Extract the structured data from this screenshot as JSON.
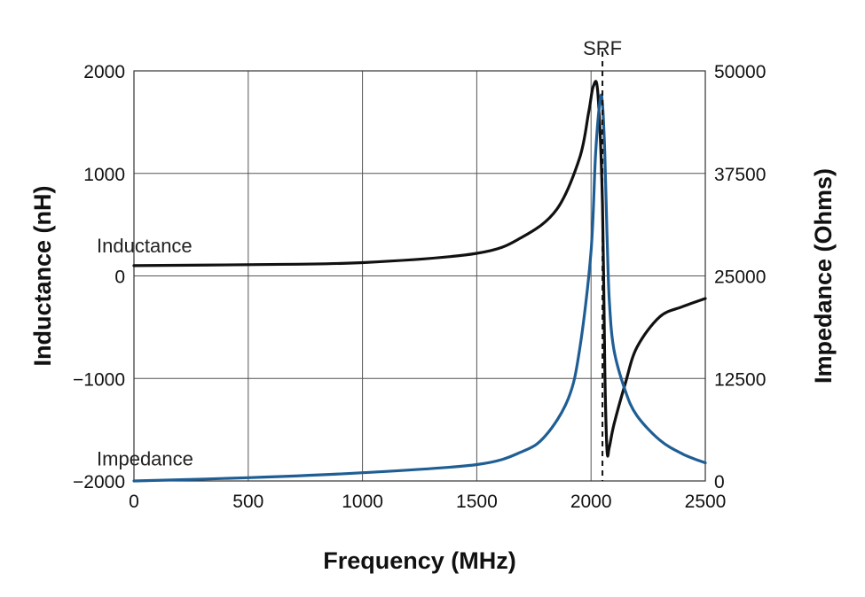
{
  "chart_data": {
    "type": "line",
    "xlabel": "Frequency (MHz)",
    "ylabel_left": "Inductance (nH)",
    "ylabel_right": "Impedance (Ohms)",
    "xlim": [
      0,
      2500
    ],
    "ylim_left": [
      -2000,
      2000
    ],
    "ylim_right": [
      0,
      50000
    ],
    "x_ticks": [
      0,
      500,
      1000,
      1500,
      2000,
      2500
    ],
    "y_ticks_left": [
      2000,
      1000,
      0,
      -1000,
      -2000
    ],
    "y_ticks_right": [
      50000,
      37500,
      25000,
      12500,
      0
    ],
    "grid": true,
    "series": [
      {
        "name": "Inductance",
        "axis": "left",
        "color": "#111111",
        "x": [
          0,
          500,
          1000,
          1500,
          1700,
          1850,
          1950,
          1990,
          2010,
          2030,
          2050,
          2060,
          2070,
          2080,
          2100,
          2150,
          2200,
          2300,
          2400,
          2500
        ],
        "y": [
          100,
          110,
          130,
          220,
          380,
          650,
          1150,
          1600,
          1850,
          1780,
          700,
          -900,
          -1700,
          -1670,
          -1450,
          -1050,
          -700,
          -400,
          -300,
          -220
        ]
      },
      {
        "name": "Impedance",
        "axis": "right",
        "color": "#1f5e94",
        "x": [
          0,
          500,
          1000,
          1500,
          1700,
          1800,
          1900,
          1950,
          2000,
          2020,
          2040,
          2050,
          2060,
          2070,
          2080,
          2100,
          2150,
          2200,
          2300,
          2400,
          2500
        ],
        "y": [
          0,
          400,
          1000,
          2000,
          3600,
          5500,
          10000,
          16000,
          28000,
          40000,
          46500,
          46000,
          40000,
          30000,
          22000,
          16000,
          11000,
          8000,
          5000,
          3300,
          2200
        ]
      }
    ],
    "annotations": [
      {
        "text": "SRF",
        "x": 2050
      },
      {
        "text": "Inductance",
        "series": "Inductance"
      },
      {
        "text": "Impedance",
        "series": "Impedance"
      }
    ]
  }
}
